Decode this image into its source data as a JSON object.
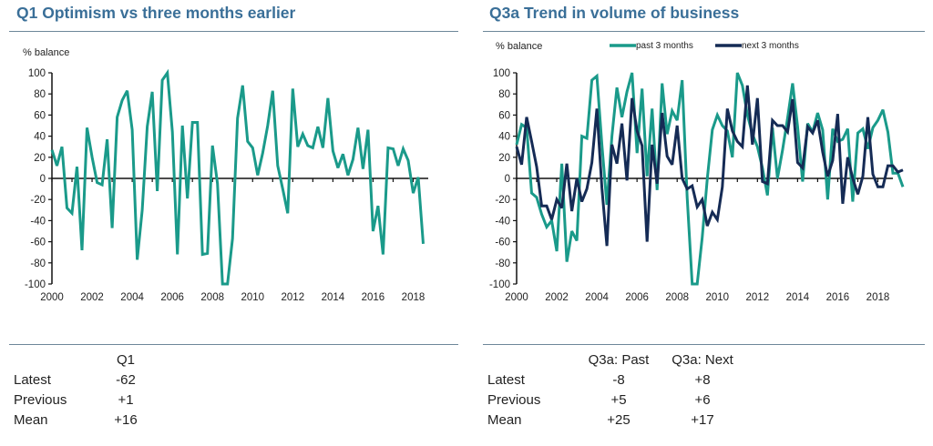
{
  "colors": {
    "title": "#3a6f98",
    "past": "#1a9a8a",
    "next": "#152b55",
    "axis": "#111111"
  },
  "chart_data": [
    {
      "type": "line",
      "title": "Q1 Optimism vs three months earlier",
      "ylabel": "% balance",
      "xlabel": "",
      "ylim": [
        -100,
        100
      ],
      "yticks": [
        100,
        80,
        60,
        40,
        20,
        0,
        -20,
        -40,
        -60,
        -80,
        -100
      ],
      "xlim": [
        2000,
        2018.75
      ],
      "xticks": [
        "2000",
        "2002",
        "2004",
        "2006",
        "2008",
        "2010",
        "2012",
        "2014",
        "2016",
        "2018"
      ],
      "x_start": 2000.0,
      "x_step": 0.25,
      "legend": "none",
      "series": [
        {
          "name": "Q1",
          "color": "#1a9a8a",
          "values": [
            27,
            12,
            30,
            -28,
            -33,
            11,
            -68,
            48,
            20,
            -4,
            -6,
            37,
            -47,
            58,
            74,
            83,
            46,
            -77,
            -30,
            49,
            82,
            -12,
            93,
            100,
            44,
            -72,
            50,
            -19,
            53,
            53,
            -72,
            -71,
            31,
            -5,
            -100,
            -100,
            -57,
            57,
            88,
            35,
            29,
            3,
            24,
            50,
            83,
            12,
            -10,
            -33,
            85,
            30,
            42,
            31,
            29,
            49,
            29,
            76,
            26,
            10,
            23,
            3,
            18,
            48,
            9,
            46,
            -50,
            -26,
            -72,
            29,
            28,
            12,
            28,
            17,
            -14,
            1,
            -62
          ]
        }
      ]
    },
    {
      "type": "line",
      "title": "Q3a Trend in volume of business",
      "ylabel": "% balance",
      "xlabel": "",
      "ylim": [
        -100,
        100
      ],
      "yticks": [
        100,
        80,
        60,
        40,
        20,
        0,
        -20,
        -40,
        -60,
        -80,
        -100
      ],
      "xlim": [
        2000,
        2018.75
      ],
      "xticks": [
        "2000",
        "2002",
        "2004",
        "2006",
        "2008",
        "2010",
        "2012",
        "2014",
        "2016",
        "2018"
      ],
      "x_start": 2000.0,
      "x_step": 0.25,
      "legend": "top",
      "series": [
        {
          "name": "past 3 months",
          "color": "#1a9a8a",
          "values": [
            32,
            51,
            48,
            -14,
            -18,
            -34,
            -46,
            -40,
            -69,
            14,
            -79,
            -50,
            -59,
            40,
            38,
            93,
            97,
            32,
            -25,
            40,
            86,
            58,
            82,
            100,
            24,
            85,
            2,
            66,
            -11,
            90,
            42,
            64,
            55,
            93,
            -18,
            -100,
            -100,
            -56,
            0,
            46,
            60,
            50,
            45,
            20,
            100,
            88,
            60,
            42,
            30,
            10,
            -16,
            48,
            0,
            27,
            57,
            90,
            49,
            -3,
            52,
            44,
            62,
            46,
            -20,
            47,
            35,
            37,
            47,
            -22,
            43,
            47,
            28,
            48,
            55,
            65,
            44,
            5,
            5,
            -8
          ]
        },
        {
          "name": "next 3 months",
          "color": "#152b55",
          "values": [
            30,
            13,
            58,
            35,
            11,
            -26,
            -26,
            -39,
            -20,
            -28,
            14,
            -31,
            0,
            -22,
            -10,
            15,
            66,
            -9,
            -64,
            32,
            14,
            52,
            -2,
            76,
            45,
            31,
            -60,
            32,
            -5,
            62,
            21,
            13,
            50,
            0,
            -10,
            -7,
            -27,
            -20,
            -45,
            -32,
            -39,
            -8,
            66,
            45,
            35,
            30,
            88,
            32,
            76,
            -3,
            -5,
            55,
            50,
            50,
            44,
            75,
            15,
            10,
            49,
            43,
            55,
            25,
            2,
            17,
            61,
            -24,
            20,
            0,
            -15,
            2,
            58,
            4,
            -8,
            -8,
            12,
            12,
            6,
            8
          ]
        }
      ]
    }
  ],
  "left": {
    "stats": {
      "columns": [
        "Q1"
      ],
      "rows": [
        {
          "label": "Latest",
          "values": [
            "-62"
          ]
        },
        {
          "label": "Previous",
          "values": [
            "+1"
          ]
        },
        {
          "label": "Mean",
          "values": [
            "+16"
          ]
        }
      ]
    }
  },
  "right": {
    "stats": {
      "columns": [
        "Q3a: Past",
        "Q3a: Next"
      ],
      "rows": [
        {
          "label": "Latest",
          "values": [
            "-8",
            "+8"
          ]
        },
        {
          "label": "Previous",
          "values": [
            "+5",
            "+6"
          ]
        },
        {
          "label": "Mean",
          "values": [
            "+25",
            "+17"
          ]
        }
      ]
    }
  }
}
